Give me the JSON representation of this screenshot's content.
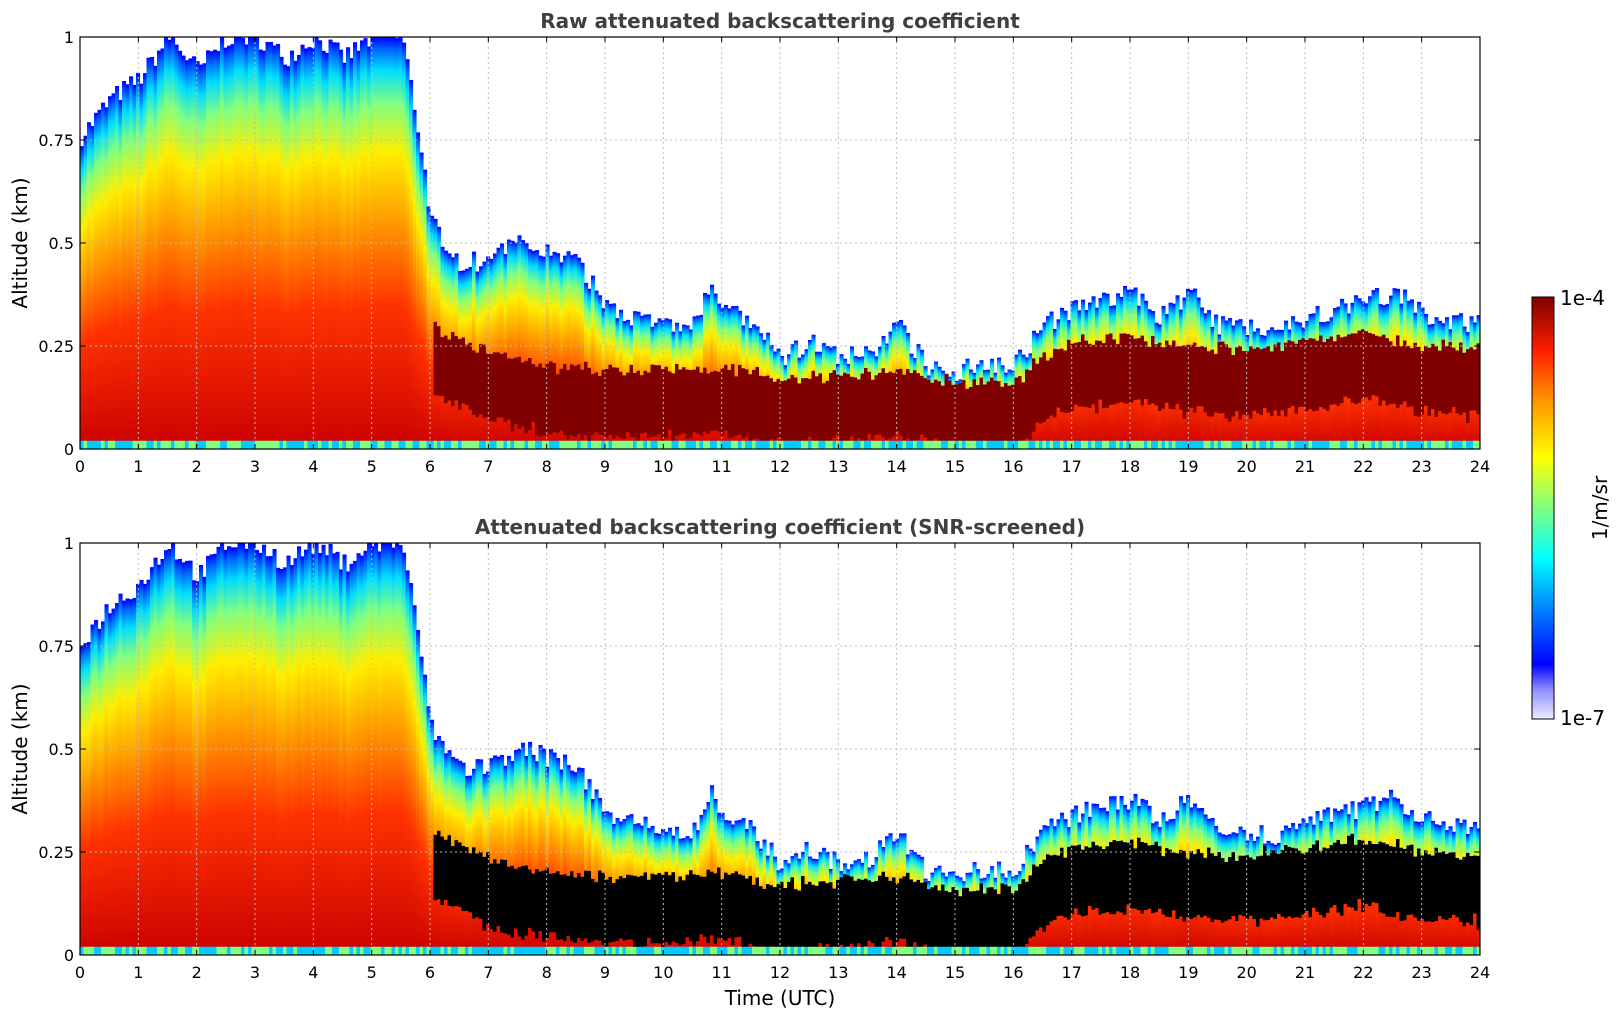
{
  "chart_data": [
    {
      "type": "heatmap",
      "title": "Raw attenuated backscattering coefficient",
      "xlabel": "",
      "ylabel": "Altitude (km)",
      "xlim": [
        0,
        24
      ],
      "ylim": [
        0,
        1
      ],
      "x_ticks": [
        "0",
        "1",
        "2",
        "3",
        "4",
        "5",
        "6",
        "7",
        "8",
        "9",
        "10",
        "11",
        "12",
        "13",
        "14",
        "15",
        "16",
        "17",
        "18",
        "19",
        "20",
        "21",
        "22",
        "23",
        "24"
      ],
      "y_ticks": [
        "0",
        "0.25",
        "0.5",
        "0.75",
        "1"
      ],
      "grid": true,
      "colorbar": {
        "min_label": "1e-7",
        "max_label": "1e-4",
        "label": "1/m/sr",
        "scale": "log"
      },
      "signal_top_km": [
        [
          0,
          0.76
        ],
        [
          0.5,
          0.85
        ],
        [
          1,
          0.9
        ],
        [
          1.5,
          1
        ],
        [
          2,
          0.92
        ],
        [
          2.5,
          1
        ],
        [
          3,
          1
        ],
        [
          3.5,
          0.95
        ],
        [
          4,
          1
        ],
        [
          4.5,
          0.95
        ],
        [
          5,
          1
        ],
        [
          5.5,
          1
        ],
        [
          5.8,
          0.75
        ],
        [
          6,
          0.55
        ],
        [
          6.5,
          0.45
        ],
        [
          7,
          0.46
        ],
        [
          7.5,
          0.5
        ],
        [
          8,
          0.48
        ],
        [
          8.5,
          0.45
        ],
        [
          9,
          0.35
        ],
        [
          9.5,
          0.32
        ],
        [
          10,
          0.3
        ],
        [
          10.5,
          0.3
        ],
        [
          10.8,
          0.4
        ],
        [
          11,
          0.34
        ],
        [
          11.5,
          0.3
        ],
        [
          12,
          0.22
        ],
        [
          12.5,
          0.26
        ],
        [
          13,
          0.22
        ],
        [
          13.5,
          0.23
        ],
        [
          14,
          0.3
        ],
        [
          14.5,
          0.2
        ],
        [
          15,
          0.19
        ],
        [
          15.5,
          0.21
        ],
        [
          16,
          0.21
        ],
        [
          16.5,
          0.3
        ],
        [
          17,
          0.34
        ],
        [
          17.5,
          0.36
        ],
        [
          18,
          0.38
        ],
        [
          18.5,
          0.32
        ],
        [
          19,
          0.38
        ],
        [
          19.5,
          0.3
        ],
        [
          20,
          0.3
        ],
        [
          20.5,
          0.29
        ],
        [
          21,
          0.32
        ],
        [
          21.5,
          0.34
        ],
        [
          22,
          0.36
        ],
        [
          22.5,
          0.38
        ],
        [
          23,
          0.33
        ],
        [
          23.5,
          0.31
        ],
        [
          24,
          0.3
        ]
      ],
      "layer_center_km": [
        [
          6,
          0.22
        ],
        [
          7,
          0.15
        ],
        [
          8,
          0.12
        ],
        [
          9,
          0.11
        ],
        [
          10,
          0.11
        ],
        [
          11,
          0.12
        ],
        [
          12,
          0.09
        ],
        [
          13,
          0.1
        ],
        [
          14,
          0.11
        ],
        [
          15,
          0.08
        ],
        [
          16,
          0.08
        ],
        [
          16.5,
          0.15
        ],
        [
          17,
          0.18
        ],
        [
          18,
          0.19
        ],
        [
          19,
          0.17
        ],
        [
          20,
          0.16
        ],
        [
          21,
          0.18
        ],
        [
          22,
          0.2
        ],
        [
          23,
          0.17
        ],
        [
          24,
          0.16
        ]
      ]
    },
    {
      "type": "heatmap",
      "title": "Attenuated backscattering coefficient (SNR-screened)",
      "xlabel": "Time (UTC)",
      "ylabel": "Altitude (km)",
      "xlim": [
        0,
        24
      ],
      "ylim": [
        0,
        1
      ],
      "x_ticks": [
        "0",
        "1",
        "2",
        "3",
        "4",
        "5",
        "6",
        "7",
        "8",
        "9",
        "10",
        "11",
        "12",
        "13",
        "14",
        "15",
        "16",
        "17",
        "18",
        "19",
        "20",
        "21",
        "22",
        "23",
        "24"
      ],
      "y_ticks": [
        "0",
        "0.25",
        "0.5",
        "0.75",
        "1"
      ],
      "grid": true,
      "screened_color": "#000000"
    }
  ],
  "colors": {
    "title": "#3f3f3f",
    "grid": "#bdbdbd",
    "layer_peak": "#800000",
    "screened": "#000000"
  }
}
